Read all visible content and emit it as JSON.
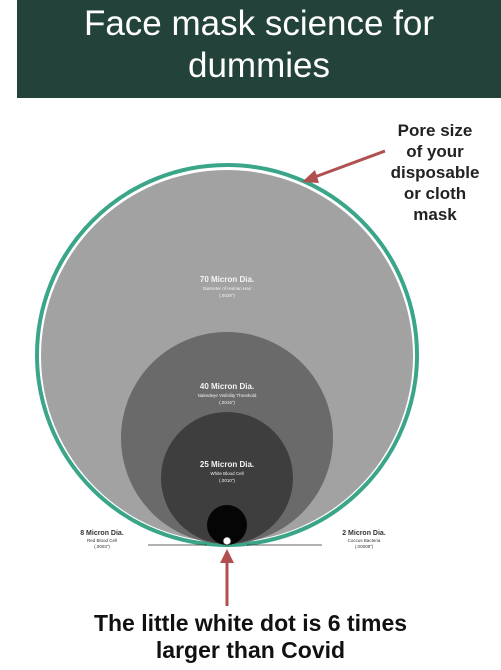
{
  "title": {
    "line1": "Face mask science for",
    "line2": "dummies"
  },
  "pore_label": {
    "lines": [
      "Pore size",
      "of your",
      "disposable",
      "or cloth",
      "mask"
    ]
  },
  "circles": {
    "hair": {
      "title": "70 Micron Dia.",
      "subtitle": "Diameter of Human Hair",
      "detail": "(.0028\")"
    },
    "visibility": {
      "title": "40 Micron Dia.",
      "subtitle": "Nakedeye Visibility Threshold",
      "detail": "(.0016\")"
    },
    "wbc": {
      "title": "25 Micron Dia.",
      "subtitle": "White Blood Cell",
      "detail": "(.0010\")"
    }
  },
  "side_labels": {
    "rbc": {
      "title": "8 Micron Dia.",
      "subtitle": "Red Blood Cell",
      "detail": "(.0003\")"
    },
    "bacteria": {
      "title": "2 Micron Dia.",
      "subtitle": "Coccus Bacteria",
      "detail": "(.00008\")"
    }
  },
  "caption": {
    "line1": "The little white dot is 6 times",
    "line2": "larger than Covid"
  },
  "colors": {
    "header_bg": "#23433a",
    "pore_ring": "#3aa588",
    "arrow": "#b05050",
    "hair_circle": "#a2a2a2",
    "visibility_circle": "#6a6a6a",
    "wbc_circle": "#3e3e3e",
    "rbc_circle": "#050505"
  }
}
